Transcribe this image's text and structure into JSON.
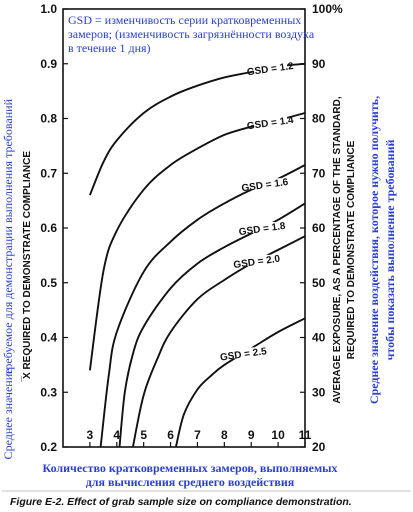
{
  "chart_data": {
    "type": "line",
    "title": "",
    "note": [
      "GSD = изменчивость серии кратковременных",
      "замеров; (изменчивость загрязнённости воздуха",
      "в течение 1 дня)"
    ],
    "xlabel_ru": [
      "Количество кратковременных замеров, выполняемых",
      "для вычисления среднего воздействия"
    ],
    "ylabel_left_en": [
      "̅X REQUIRED TO DEMONSTRATE COMPLIANCE"
    ],
    "ylabel_left_ru": [
      "требуемое для демонстрации выполнения требований",
      "Среднее значение"
    ],
    "ylabel_right_en": [
      "AVERAGE EXPOSURE, AS A PERCENTAGE OF THE STANDARD,",
      "REQUIRED TO DEMONSTRATE COMPLIANCE"
    ],
    "ylabel_right_ru": [
      "Среднее значение воздействия, которое нужно получить,",
      "чтобы показать выполнение требований"
    ],
    "caption": "Figure E-2. Effect of grab sample size on compliance demonstration.",
    "x_ticks": [
      "3",
      "4",
      "5",
      "6",
      "7",
      "8",
      "9",
      "10",
      "11"
    ],
    "xlim": [
      2,
      11
    ],
    "ylim": [
      0.2,
      1.0
    ],
    "y_ticks_left": [
      "0.2",
      "0.3",
      "0.4",
      "0.5",
      "0.6",
      "0.7",
      "0.8",
      "0.9",
      "1.0"
    ],
    "y_ticks_right": [
      "20",
      "30",
      "40",
      "50",
      "60",
      "70",
      "80",
      "90",
      "100%"
    ],
    "grid": false,
    "series": [
      {
        "name": "GSD = 1.2",
        "label_x": 9.7,
        "x": [
          3,
          3.5,
          4,
          5,
          6,
          7,
          8,
          9,
          10,
          11
        ],
        "y": [
          0.66,
          0.72,
          0.76,
          0.81,
          0.84,
          0.86,
          0.875,
          0.885,
          0.895,
          0.9
        ]
      },
      {
        "name": "GSD = 1.4",
        "label_x": 9.7,
        "x": [
          3,
          3.5,
          4,
          5,
          6,
          7,
          8,
          9,
          10,
          11
        ],
        "y": [
          0.34,
          0.52,
          0.595,
          0.67,
          0.715,
          0.745,
          0.77,
          0.785,
          0.797,
          0.81
        ]
      },
      {
        "name": "GSD = 1.6",
        "label_x": 9.5,
        "x": [
          3.4,
          3.7,
          4,
          5,
          6,
          7,
          8,
          9,
          10,
          11
        ],
        "y": [
          0.2,
          0.33,
          0.41,
          0.52,
          0.575,
          0.615,
          0.645,
          0.67,
          0.69,
          0.715
        ]
      },
      {
        "name": "GSD = 1.8",
        "label_x": 9.4,
        "x": [
          4.1,
          4.3,
          4.6,
          5,
          6,
          7,
          8,
          9,
          10,
          11
        ],
        "y": [
          0.2,
          0.3,
          0.37,
          0.42,
          0.49,
          0.535,
          0.565,
          0.59,
          0.615,
          0.645
        ]
      },
      {
        "name": "GSD = 2.0",
        "label_x": 9.2,
        "x": [
          4.6,
          5,
          5.5,
          6,
          7,
          8,
          9,
          10,
          11
        ],
        "y": [
          0.2,
          0.295,
          0.36,
          0.41,
          0.47,
          0.505,
          0.535,
          0.56,
          0.585
        ]
      },
      {
        "name": "GSD = 2.5",
        "label_x": 8.7,
        "x": [
          6.2,
          6.5,
          7,
          7.5,
          8,
          9,
          10,
          11
        ],
        "y": [
          0.2,
          0.26,
          0.305,
          0.33,
          0.35,
          0.38,
          0.41,
          0.435
        ]
      }
    ]
  }
}
